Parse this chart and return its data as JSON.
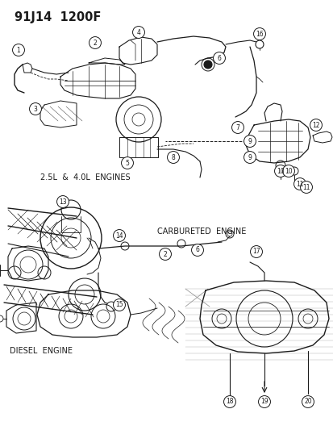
{
  "title": "91J14  1200F",
  "bg_color": "#ffffff",
  "lc": "#1a1a1a",
  "figsize": [
    4.14,
    5.33
  ],
  "dpi": 100,
  "label_engines": "2.5L  &  4.0L  ENGINES",
  "label_carb": "CARBURETED  ENGINE",
  "label_diesel": "DIESEL  ENGINE",
  "callout_r": 0.018,
  "callout_fs": 5.5,
  "title_fs": 10.5,
  "label_fs": 7.0
}
